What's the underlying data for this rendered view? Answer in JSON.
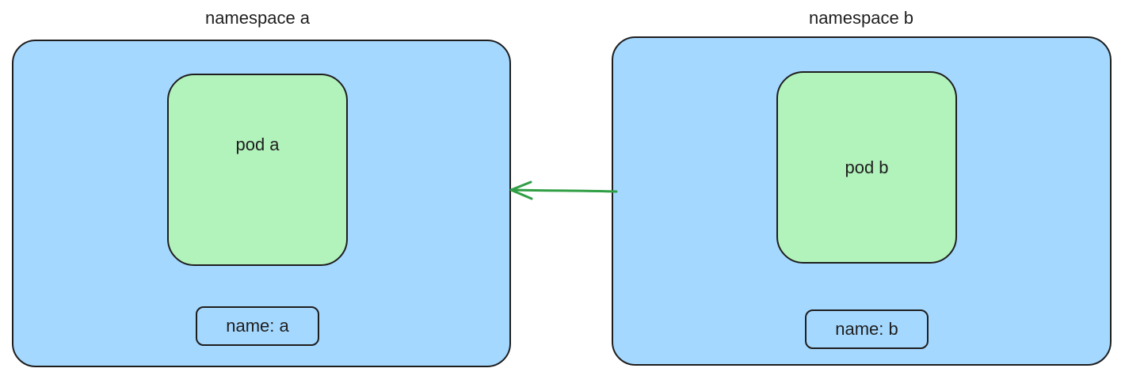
{
  "diagram": {
    "namespace_a": {
      "title": "namespace a",
      "pod": "pod a",
      "label": "name: a"
    },
    "namespace_b": {
      "title": "namespace b",
      "pod": "pod b",
      "label": "name: b"
    },
    "arrow": {
      "from": "namespace b",
      "to": "namespace a",
      "color": "#2f9e44"
    },
    "colors": {
      "namespace_fill": "#a5d8ff",
      "pod_fill": "#b2f2bb",
      "stroke": "#1e1e1e"
    }
  }
}
